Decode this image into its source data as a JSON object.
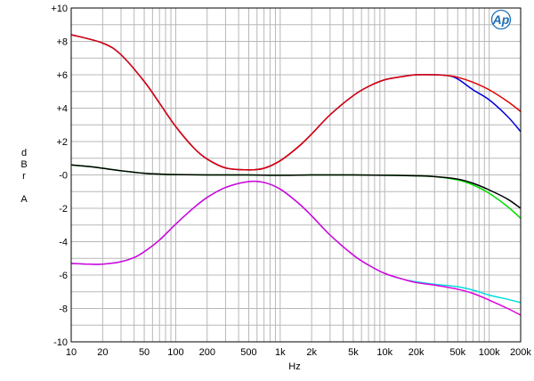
{
  "chart_data": {
    "type": "line",
    "xlabel": "Hz",
    "ylabel_chars": [
      "d",
      "B",
      "r",
      "",
      "A"
    ],
    "xscale": "log",
    "xlim": [
      10,
      200000
    ],
    "ylim": [
      -10,
      10
    ],
    "grid": true,
    "logo_text": "Ap",
    "x_ticks": [
      {
        "v": 10,
        "label": "10"
      },
      {
        "v": 20,
        "label": "20"
      },
      {
        "v": 50,
        "label": "50"
      },
      {
        "v": 100,
        "label": "100"
      },
      {
        "v": 200,
        "label": "200"
      },
      {
        "v": 500,
        "label": "500"
      },
      {
        "v": 1000,
        "label": "1k"
      },
      {
        "v": 2000,
        "label": "2k"
      },
      {
        "v": 5000,
        "label": "5k"
      },
      {
        "v": 10000,
        "label": "10k"
      },
      {
        "v": 20000,
        "label": "20k"
      },
      {
        "v": 50000,
        "label": "50k"
      },
      {
        "v": 100000,
        "label": "100k"
      },
      {
        "v": 200000,
        "label": "200k"
      }
    ],
    "y_ticks": [
      {
        "v": 10,
        "label": "+10"
      },
      {
        "v": 8,
        "label": "+8"
      },
      {
        "v": 6,
        "label": "+6"
      },
      {
        "v": 4,
        "label": "+4"
      },
      {
        "v": 2,
        "label": "+2"
      },
      {
        "v": 0,
        "label": "-0"
      },
      {
        "v": -2,
        "label": "-2"
      },
      {
        "v": -4,
        "label": "-4"
      },
      {
        "v": -6,
        "label": "-6"
      },
      {
        "v": -8,
        "label": "-8"
      },
      {
        "v": -10,
        "label": "-10"
      }
    ],
    "series": [
      {
        "color": "#0000dd",
        "x": [
          10,
          20,
          30,
          50,
          70,
          100,
          150,
          200,
          300,
          500,
          700,
          1000,
          1500,
          2000,
          3000,
          5000,
          7000,
          10000,
          15000,
          20000,
          30000,
          40000,
          50000,
          70000,
          100000,
          150000,
          200000
        ],
        "y": [
          8.4,
          7.9,
          7.2,
          5.6,
          4.3,
          2.9,
          1.6,
          0.95,
          0.42,
          0.3,
          0.4,
          0.85,
          1.7,
          2.45,
          3.6,
          4.75,
          5.3,
          5.7,
          5.9,
          6.0,
          6.0,
          5.95,
          5.75,
          5.1,
          4.5,
          3.5,
          2.6
        ]
      },
      {
        "color": "#e00000",
        "x": [
          10,
          20,
          30,
          50,
          70,
          100,
          150,
          200,
          300,
          500,
          700,
          1000,
          1500,
          2000,
          3000,
          5000,
          7000,
          10000,
          15000,
          20000,
          30000,
          40000,
          50000,
          70000,
          100000,
          150000,
          200000
        ],
        "y": [
          8.4,
          7.9,
          7.2,
          5.6,
          4.3,
          2.9,
          1.6,
          0.95,
          0.42,
          0.3,
          0.4,
          0.85,
          1.7,
          2.45,
          3.6,
          4.75,
          5.3,
          5.7,
          5.9,
          6.0,
          6.0,
          5.95,
          5.85,
          5.55,
          5.1,
          4.4,
          3.8
        ]
      },
      {
        "color": "#00dd00",
        "x": [
          10,
          15,
          20,
          30,
          50,
          70,
          100,
          200,
          500,
          1000,
          2000,
          5000,
          10000,
          20000,
          30000,
          50000,
          70000,
          100000,
          150000,
          200000
        ],
        "y": [
          0.6,
          0.5,
          0.4,
          0.25,
          0.1,
          0.05,
          0.02,
          0.0,
          0.0,
          -0.02,
          0.0,
          0.0,
          -0.02,
          -0.05,
          -0.1,
          -0.3,
          -0.6,
          -1.1,
          -1.9,
          -2.6
        ]
      },
      {
        "color": "#000000",
        "x": [
          10,
          15,
          20,
          30,
          50,
          70,
          100,
          200,
          500,
          1000,
          2000,
          5000,
          10000,
          20000,
          30000,
          50000,
          70000,
          100000,
          150000,
          200000
        ],
        "y": [
          0.6,
          0.5,
          0.4,
          0.25,
          0.1,
          0.05,
          0.02,
          0.0,
          0.0,
          -0.02,
          0.0,
          0.0,
          -0.02,
          -0.05,
          -0.1,
          -0.25,
          -0.5,
          -0.9,
          -1.45,
          -2.0
        ]
      },
      {
        "color": "#00dddd",
        "x": [
          10,
          15,
          20,
          30,
          40,
          50,
          70,
          100,
          150,
          200,
          300,
          500,
          700,
          1000,
          1500,
          2000,
          3000,
          5000,
          7000,
          10000,
          15000,
          20000,
          30000,
          50000,
          70000,
          100000,
          150000,
          200000
        ],
        "y": [
          -5.3,
          -5.35,
          -5.35,
          -5.2,
          -4.95,
          -4.6,
          -3.9,
          -2.95,
          -1.95,
          -1.35,
          -0.75,
          -0.4,
          -0.45,
          -0.85,
          -1.7,
          -2.45,
          -3.6,
          -4.8,
          -5.4,
          -5.9,
          -6.25,
          -6.4,
          -6.55,
          -6.7,
          -6.9,
          -7.2,
          -7.45,
          -7.65
        ]
      },
      {
        "color": "#dd00dd",
        "x": [
          10,
          15,
          20,
          30,
          40,
          50,
          70,
          100,
          150,
          200,
          300,
          500,
          700,
          1000,
          1500,
          2000,
          3000,
          5000,
          7000,
          10000,
          15000,
          20000,
          30000,
          50000,
          70000,
          100000,
          150000,
          200000
        ],
        "y": [
          -5.3,
          -5.35,
          -5.35,
          -5.2,
          -4.95,
          -4.6,
          -3.9,
          -2.95,
          -1.95,
          -1.35,
          -0.75,
          -0.4,
          -0.45,
          -0.85,
          -1.7,
          -2.45,
          -3.6,
          -4.8,
          -5.4,
          -5.9,
          -6.25,
          -6.45,
          -6.6,
          -6.85,
          -7.1,
          -7.5,
          -8.0,
          -8.4
        ]
      }
    ]
  }
}
